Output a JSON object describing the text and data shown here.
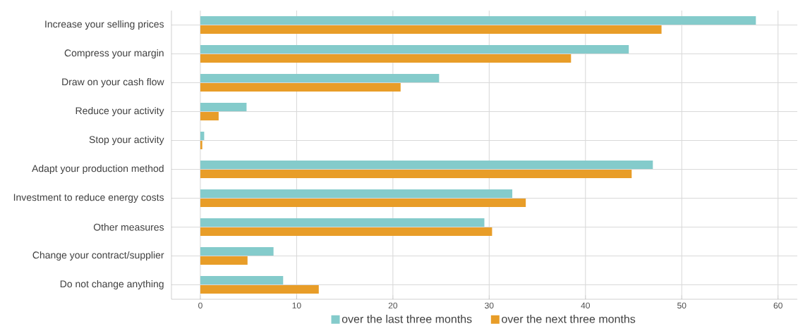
{
  "chart_data": {
    "type": "bar",
    "orientation": "horizontal",
    "categories": [
      "Increase your selling prices",
      "Compress your margin",
      "Draw on your cash flow",
      "Reduce your activity",
      "Stop your activity",
      "Adapt your production method",
      "Investment to reduce energy costs",
      "Other measures",
      "Change your contract/supplier",
      "Do not change anything"
    ],
    "series": [
      {
        "name": "over the last three months",
        "color": "#84cbcb",
        "values": [
          57.7,
          44.5,
          24.8,
          4.8,
          0.4,
          47.0,
          32.4,
          29.5,
          7.6,
          8.6
        ]
      },
      {
        "name": "over the next three months",
        "color": "#e89d28",
        "values": [
          47.9,
          38.5,
          20.8,
          1.9,
          0.2,
          44.8,
          33.8,
          30.3,
          4.9,
          12.3
        ]
      }
    ],
    "xlim": [
      -3,
      62
    ],
    "xticks": [
      0,
      10,
      20,
      30,
      40,
      50,
      60
    ],
    "grid": true,
    "legend": "bottom"
  }
}
